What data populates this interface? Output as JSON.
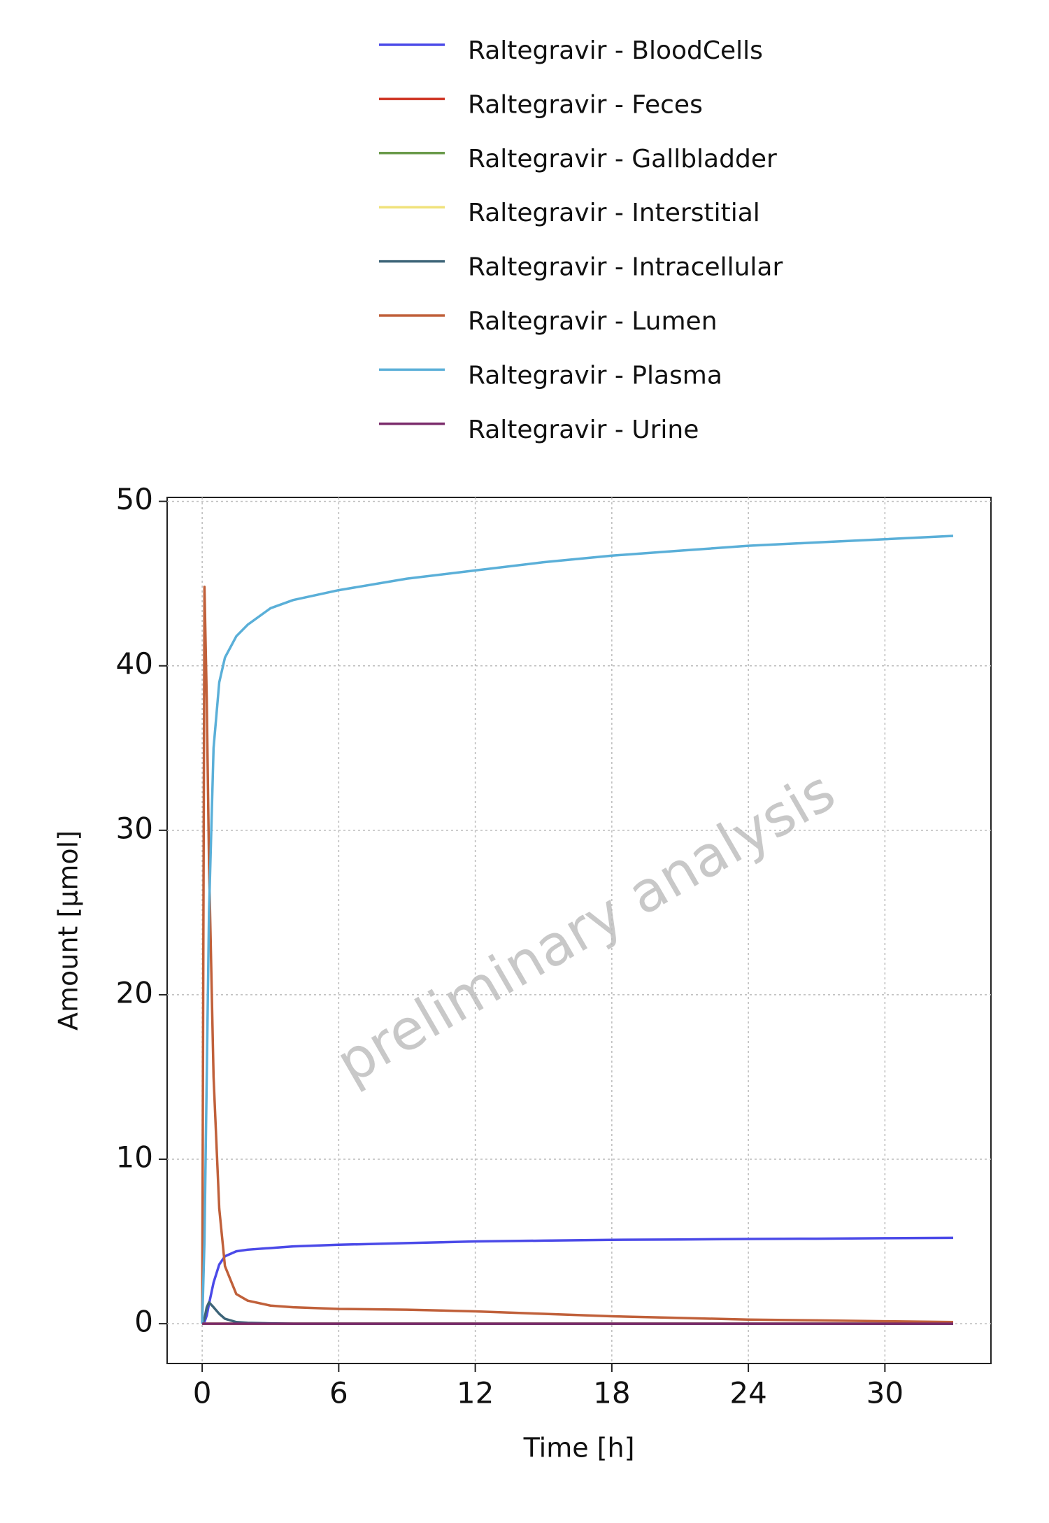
{
  "chart_data": {
    "type": "line",
    "x_label": "Time [h]",
    "y_label": "Amount [µmol]",
    "watermark": "preliminary analysis",
    "xlim": [
      -1.54,
      34.66
    ],
    "ylim": [
      -2.42,
      50.24
    ],
    "xticks": [
      0,
      6,
      12,
      18,
      24,
      30
    ],
    "yticks": [
      0,
      10,
      20,
      30,
      40,
      50
    ],
    "grid": true,
    "x": [
      0,
      0.1,
      0.2,
      0.3,
      0.5,
      0.75,
      1,
      1.5,
      2,
      3,
      4,
      6,
      9,
      12,
      15,
      18,
      21,
      24,
      27,
      30,
      33
    ],
    "series": [
      {
        "name": "Raltegravir - BloodCells",
        "color": "#4b4ae8",
        "values": [
          0,
          0.1,
          0.5,
          1.2,
          2.5,
          3.6,
          4.1,
          4.4,
          4.5,
          4.6,
          4.7,
          4.8,
          4.9,
          5.0,
          5.05,
          5.1,
          5.12,
          5.15,
          5.17,
          5.2,
          5.22
        ]
      },
      {
        "name": "Raltegravir - Feces",
        "color": "#d03a2a",
        "values": [
          0,
          0,
          0,
          0,
          0,
          0,
          0,
          0,
          0,
          0,
          0,
          0,
          0,
          0,
          0,
          0,
          0,
          0,
          0,
          0,
          0
        ]
      },
      {
        "name": "Raltegravir - Gallbladder",
        "color": "#6a9a4a",
        "values": [
          0,
          0,
          0,
          0,
          0,
          0,
          0,
          0,
          0,
          0,
          0,
          0,
          0,
          0,
          0,
          0,
          0,
          0,
          0,
          0,
          0
        ]
      },
      {
        "name": "Raltegravir - Interstitial",
        "color": "#f0e27a",
        "values": [
          0,
          0,
          0,
          0,
          0,
          0,
          0,
          0,
          0,
          0,
          0,
          0,
          0,
          0,
          0,
          0,
          0,
          0,
          0,
          0,
          0
        ]
      },
      {
        "name": "Raltegravir - Intracellular",
        "color": "#3d6478",
        "values": [
          0,
          0.3,
          1.0,
          1.3,
          1.0,
          0.6,
          0.3,
          0.1,
          0.05,
          0.02,
          0,
          0,
          0,
          0,
          0,
          0,
          0,
          0,
          0,
          0,
          0
        ]
      },
      {
        "name": "Raltegravir - Lumen",
        "color": "#c0603a",
        "values": [
          0,
          44.8,
          38,
          28,
          15,
          7,
          3.5,
          1.8,
          1.4,
          1.1,
          1.0,
          0.9,
          0.85,
          0.75,
          0.6,
          0.45,
          0.35,
          0.25,
          0.2,
          0.15,
          0.1
        ]
      },
      {
        "name": "Raltegravir - Plasma",
        "color": "#5aafd8",
        "values": [
          0,
          5,
          15,
          25,
          35,
          39,
          40.5,
          41.8,
          42.5,
          43.5,
          44.0,
          44.6,
          45.3,
          45.8,
          46.3,
          46.7,
          47.0,
          47.3,
          47.5,
          47.7,
          47.9
        ]
      },
      {
        "name": "Raltegravir - Urine",
        "color": "#7a2a6a",
        "values": [
          0,
          0,
          0,
          0,
          0,
          0,
          0,
          0,
          0,
          0,
          0,
          0,
          0,
          0,
          0,
          0,
          0,
          0,
          0,
          0,
          0
        ]
      }
    ]
  }
}
